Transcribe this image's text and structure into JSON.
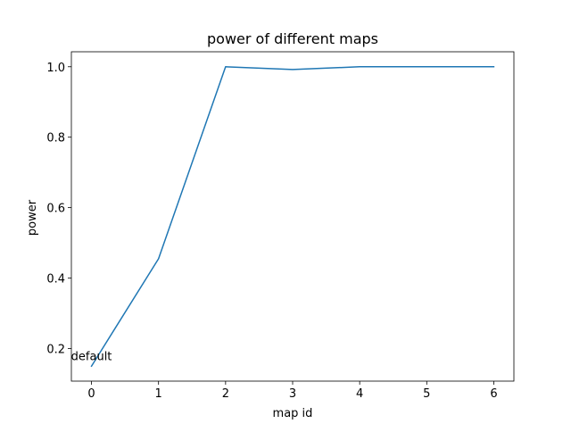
{
  "chart_data": {
    "type": "line",
    "title": "power of different maps",
    "xlabel": "map id",
    "ylabel": "power",
    "x": [
      0,
      1,
      2,
      3,
      4,
      5,
      6
    ],
    "series": [
      {
        "values": [
          0.15,
          0.455,
          1.0,
          0.992,
          1.0,
          1.0,
          1.0
        ],
        "color": "#1f77b4"
      }
    ],
    "xlim": [
      -0.3,
      6.3
    ],
    "ylim": [
      0.1075,
      1.0425
    ],
    "x_ticks": [
      0,
      1,
      2,
      3,
      4,
      5,
      6
    ],
    "y_ticks": [
      0.2,
      0.4,
      0.6,
      0.8,
      1.0
    ],
    "y_tick_labels": [
      "0.2",
      "0.4",
      "0.6",
      "0.8",
      "1.0"
    ],
    "grid": false,
    "annotations": [
      {
        "text": "default",
        "x": 0,
        "y": 0.18
      }
    ]
  }
}
